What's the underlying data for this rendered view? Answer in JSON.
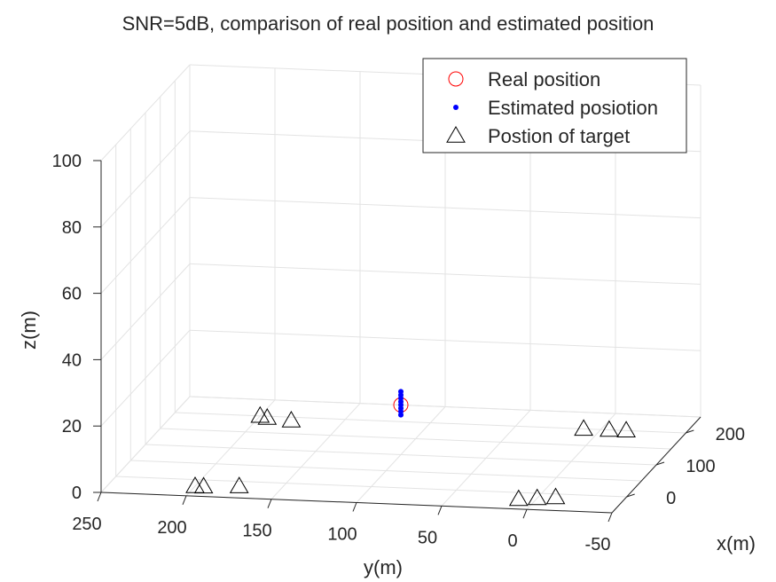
{
  "chart_data": {
    "type": "scatter3d",
    "title": "SNR=5dB, comparison of real position and estimated position",
    "xlabel": "x(m)",
    "ylabel": "y(m)",
    "zlabel": "z(m)",
    "xlim": [
      -50,
      250
    ],
    "ylim": [
      -50,
      250
    ],
    "zlim": [
      0,
      100
    ],
    "x_ticks": [
      "0",
      "100",
      "200"
    ],
    "y_ticks": [
      "250",
      "200",
      "150",
      "100",
      "50",
      "0",
      "-50"
    ],
    "z_ticks": [
      "0",
      "20",
      "40",
      "60",
      "80",
      "100"
    ],
    "grid": true,
    "legend_position": "top-right",
    "series": [
      {
        "name": "Real position",
        "marker": "circle",
        "color": "#ff0000",
        "points": [
          [
            100,
            100,
            15
          ]
        ]
      },
      {
        "name": "Estimated posiotion",
        "marker": "dot",
        "color": "#0000ff",
        "points": [
          [
            100,
            100,
            12
          ],
          [
            100,
            100,
            13
          ],
          [
            100,
            100,
            14
          ],
          [
            100,
            100,
            15
          ],
          [
            100,
            100,
            16
          ],
          [
            100,
            100,
            17
          ],
          [
            100,
            100,
            18
          ],
          [
            100,
            100,
            19
          ]
        ]
      },
      {
        "name": "Postion of target",
        "marker": "triangle",
        "color": "#000000",
        "points": [
          [
            -20,
            200,
            0
          ],
          [
            -20,
            195,
            0
          ],
          [
            -15,
            175,
            0
          ],
          [
            200,
            200,
            0
          ],
          [
            195,
            195,
            0
          ],
          [
            190,
            180,
            0
          ],
          [
            -20,
            10,
            0
          ],
          [
            -15,
            0,
            0
          ],
          [
            -10,
            -10,
            0
          ],
          [
            200,
            10,
            0
          ],
          [
            200,
            -5,
            0
          ],
          [
            200,
            -15,
            0
          ]
        ]
      }
    ]
  }
}
